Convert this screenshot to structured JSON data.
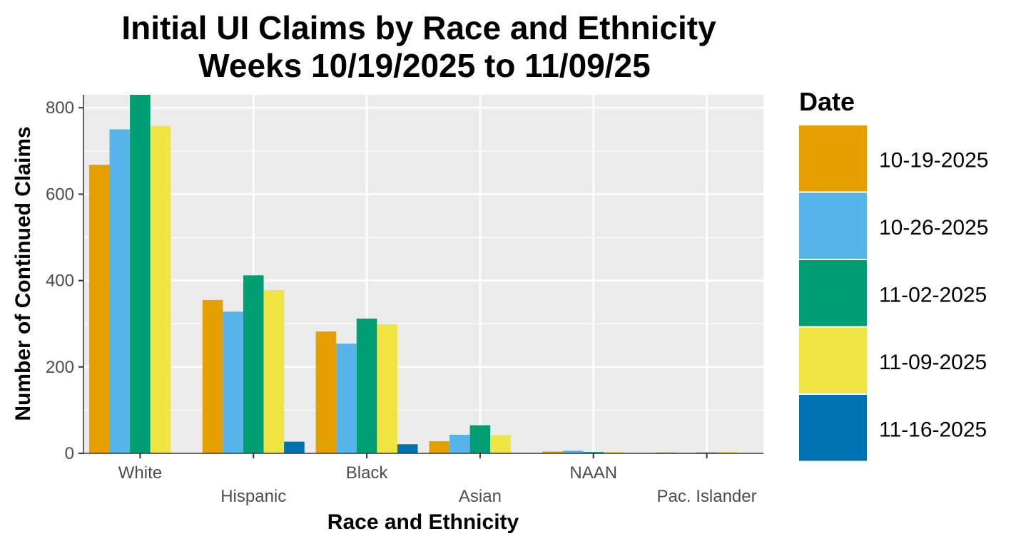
{
  "chart_data": {
    "type": "bar",
    "title": [
      "Initial UI Claims by Race and Ethnicity",
      "Weeks 10/19/2025 to 11/09/25"
    ],
    "xlabel": "Race and Ethnicity",
    "ylabel": "Number of Continued Claims",
    "ylim": [
      0,
      830
    ],
    "yticks": [
      0,
      200,
      400,
      600,
      800
    ],
    "grid": true,
    "legend_position": "right",
    "legend_title": "Date",
    "categories": [
      "White",
      "Hispanic",
      "Black",
      "Asian",
      "NAAN",
      "Pac. Islander"
    ],
    "series": [
      {
        "name": "10-19-2025",
        "color": "#E69F00",
        "values": [
          668,
          355,
          282,
          28,
          4,
          2
        ]
      },
      {
        "name": "10-26-2025",
        "color": "#56B4E9",
        "values": [
          750,
          328,
          254,
          43,
          6,
          1
        ]
      },
      {
        "name": "11-02-2025",
        "color": "#009E73",
        "values": [
          835,
          412,
          312,
          65,
          3,
          2
        ]
      },
      {
        "name": "11-09-2025",
        "color": "#F0E442",
        "values": [
          758,
          378,
          299,
          42,
          3,
          3
        ]
      },
      {
        "name": "11-16-2025",
        "color": "#0072B2",
        "values": [
          null,
          27,
          21,
          1,
          null,
          null
        ]
      }
    ]
  }
}
